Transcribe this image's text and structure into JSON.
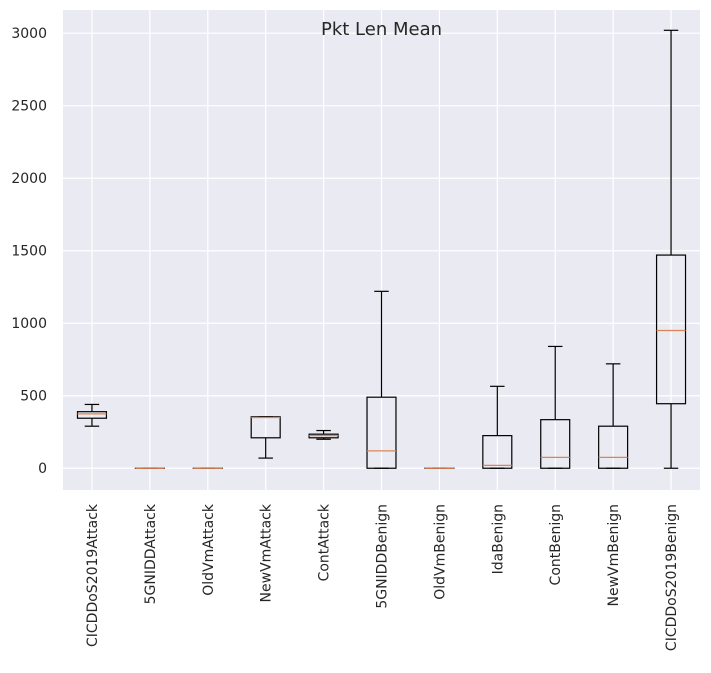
{
  "chart_data": {
    "type": "boxplot",
    "title": "Pkt Len Mean",
    "xlabel": "",
    "ylabel": "",
    "ylim": [
      -150,
      3160
    ],
    "yticks": [
      0,
      500,
      1000,
      1500,
      2000,
      2500,
      3000
    ],
    "grid": true,
    "categories": [
      "CICDDoS2019Attack",
      "5GNIDDAttack",
      "OldVmAttack",
      "NewVmAttack",
      "ContAttack",
      "5GNIDDBenign",
      "OldVmBenign",
      "IdaBenign",
      "ContBenign",
      "NewVmBenign",
      "CICDDoS2019Benign"
    ],
    "boxes": [
      {
        "whisker_low": 290,
        "q1": 345,
        "median": 375,
        "q3": 390,
        "whisker_high": 440
      },
      {
        "whisker_low": 0,
        "q1": 0,
        "median": 0,
        "q3": 0,
        "whisker_high": 0
      },
      {
        "whisker_low": 0,
        "q1": 0,
        "median": 0,
        "q3": 0,
        "whisker_high": 0
      },
      {
        "whisker_low": 70,
        "q1": 210,
        "median": 350,
        "q3": 355,
        "whisker_high": 355
      },
      {
        "whisker_low": 200,
        "q1": 210,
        "median": 225,
        "q3": 235,
        "whisker_high": 260
      },
      {
        "whisker_low": 0,
        "q1": 0,
        "median": 120,
        "q3": 490,
        "whisker_high": 1220
      },
      {
        "whisker_low": 0,
        "q1": 0,
        "median": 0,
        "q3": 0,
        "whisker_high": 0
      },
      {
        "whisker_low": 0,
        "q1": 0,
        "median": 20,
        "q3": 225,
        "whisker_high": 565
      },
      {
        "whisker_low": 0,
        "q1": 0,
        "median": 75,
        "q3": 335,
        "whisker_high": 840
      },
      {
        "whisker_low": 0,
        "q1": 0,
        "median": 75,
        "q3": 290,
        "whisker_high": 720
      },
      {
        "whisker_low": 0,
        "q1": 445,
        "median": 950,
        "q3": 1470,
        "whisker_high": 3020
      }
    ],
    "colors": {
      "background": "#eaeaf2",
      "grid": "#ffffff",
      "box": "#000000",
      "median": "#dd8452",
      "text": "#262626"
    }
  }
}
